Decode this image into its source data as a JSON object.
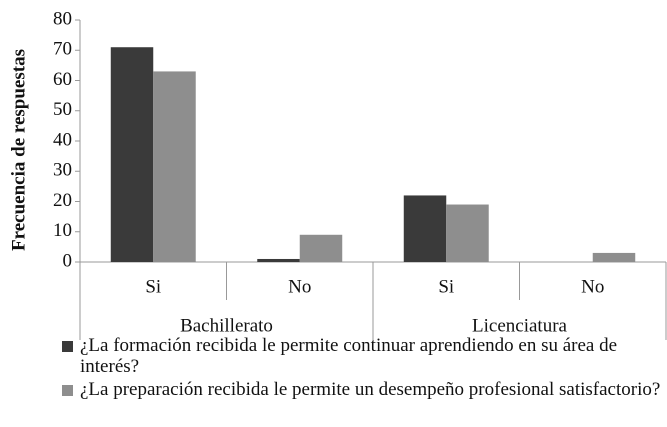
{
  "chart_data": {
    "type": "bar",
    "ylabel": "Frecuencia de respuestas",
    "categories": [
      "Si",
      "No",
      "Si",
      "No"
    ],
    "groups": [
      "Bachillerato",
      "Licenciatura"
    ],
    "series": [
      {
        "name": "¿La formación recibida le permite continuar aprendiendo en su área de interés?",
        "color": "#3a3a3a",
        "values": [
          71,
          1,
          22,
          0
        ]
      },
      {
        "name": "¿La preparación recibida le permite un desempeño profesional satisfactorio?",
        "color": "#8e8e8e",
        "values": [
          63,
          9,
          19,
          3
        ]
      }
    ],
    "ylim": [
      0,
      80
    ],
    "yticks": [
      0,
      10,
      20,
      30,
      40,
      50,
      60,
      70,
      80
    ],
    "grid": false
  }
}
